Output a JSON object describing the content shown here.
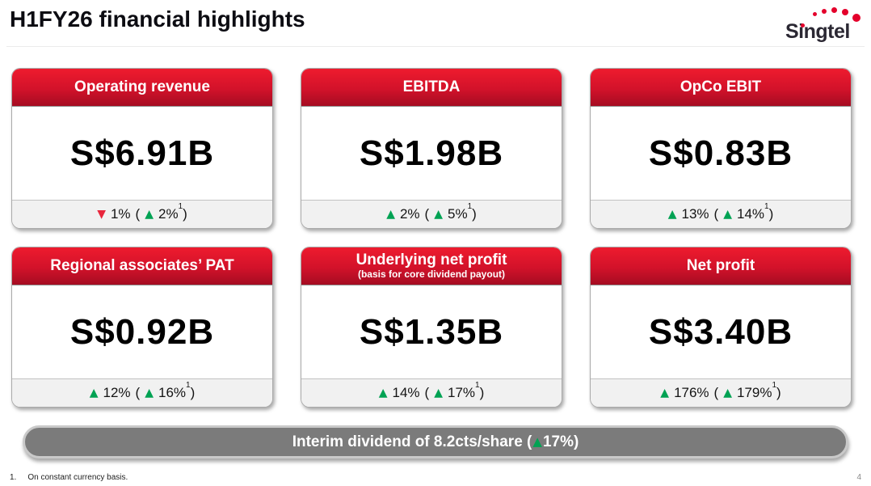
{
  "colors": {
    "brand_red": "#e4002b",
    "card_header_gradient_top": "#ee1b2e",
    "card_header_gradient_bottom": "#a50c22",
    "positive_green": "#00a253",
    "negative_red": "#e8263c",
    "dividend_bar_gray": "#7b7b7b",
    "card_footer_gray": "#f1f1f1"
  },
  "header": {
    "title": "H1FY26 financial highlights",
    "logo_brand": "Singtel"
  },
  "labels": {
    "open": "(",
    "close": ")",
    "footnote_ref": "1"
  },
  "cards": [
    {
      "title": "Operating revenue",
      "value": "S$6.91B",
      "change": {
        "arrow": "▼",
        "pct": "1%",
        "cc_arrow": "▲",
        "cc_pct": "2%"
      }
    },
    {
      "title": "EBITDA",
      "value": "S$1.98B",
      "change": {
        "arrow": "▲",
        "pct": "2%",
        "cc_arrow": "▲",
        "cc_pct": "5%"
      }
    },
    {
      "title": "OpCo EBIT",
      "value": "S$0.83B",
      "change": {
        "arrow": "▲",
        "pct": "13%",
        "cc_arrow": "▲",
        "cc_pct": "14%"
      }
    },
    {
      "title": "Regional associates’ PAT",
      "value": "S$0.92B",
      "change": {
        "arrow": "▲",
        "pct": "12%",
        "cc_arrow": "▲",
        "cc_pct": "16%"
      }
    },
    {
      "title": "Underlying net profit",
      "subtitle": "(basis for core dividend payout)",
      "value": "S$1.35B",
      "change": {
        "arrow": "▲",
        "pct": "14%",
        "cc_arrow": "▲",
        "cc_pct": "17%"
      }
    },
    {
      "title": "Net profit",
      "value": "S$3.40B",
      "change": {
        "arrow": "▲",
        "pct": "176%",
        "cc_arrow": "▲",
        "cc_pct": "179%"
      }
    }
  ],
  "dividend_bar": {
    "lead": "Interim dividend of 8.2cts/share (",
    "arrow": "▲",
    "value": "17%",
    "close": ")"
  },
  "footnote": {
    "index": "1.",
    "text": "On constant currency basis."
  },
  "page_number": "4"
}
